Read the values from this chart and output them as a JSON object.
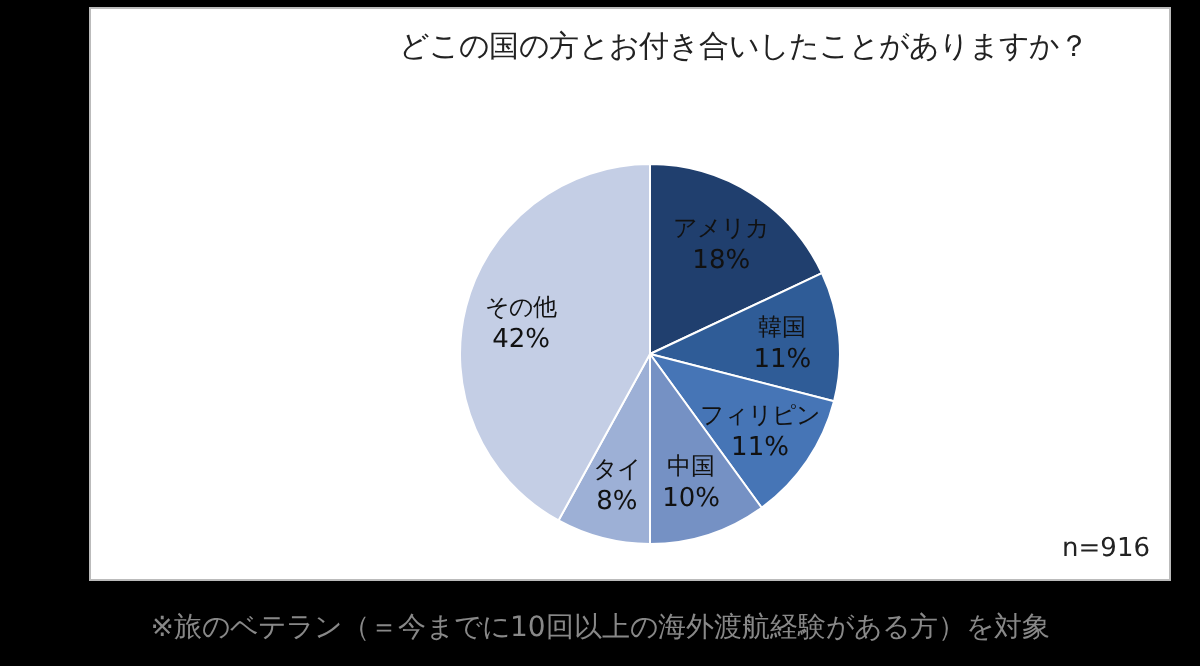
{
  "chart_data": {
    "type": "pie",
    "title": "どこの国の方とお付き合いしたことがありますか？",
    "categories": [
      "アメリカ",
      "韓国",
      "フィリピン",
      "中国",
      "タイ",
      "その他"
    ],
    "values": [
      18,
      11,
      11,
      10,
      8,
      42
    ],
    "colors": [
      "#203f6e",
      "#2f5c97",
      "#4675b6",
      "#7591c4",
      "#9db0d6",
      "#c4cee5"
    ],
    "value_labels": [
      "18%",
      "11%",
      "11%",
      "10%",
      "8%",
      "42%"
    ],
    "annotations": [
      "n=916",
      "※旅のベテラン（＝今までに10回以上の海外渡航経験がある方）を対象"
    ]
  }
}
